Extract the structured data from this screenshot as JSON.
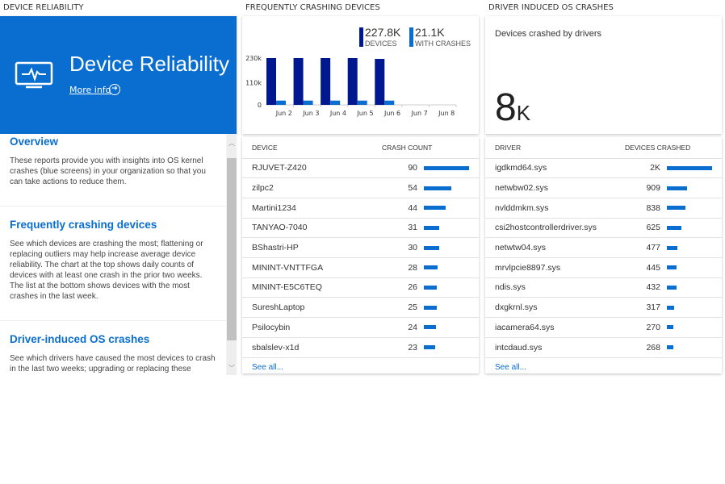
{
  "sections": {
    "left": "DEVICE RELIABILITY",
    "middle": "FREQUENTLY CRASHING DEVICES",
    "right": "DRIVER INDUCED OS CRASHES"
  },
  "hero": {
    "title": "Device Reliability",
    "more_info": "More info",
    "icon": "monitor-pulse-icon",
    "color": "#0a6ed1"
  },
  "info": [
    {
      "title": "Overview",
      "text": "These reports provide you with insights into OS kernel crashes (blue screens) in your organization so that you can take actions to reduce them."
    },
    {
      "title": "Frequently crashing devices",
      "text": "See which devices are crashing the most; flattening or replacing outliers may help increase average device reliability. The chart at the top shows daily counts of devices with at least one crash in the prior two weeks. The list at the bottom shows devices with the most crashes in the last week."
    },
    {
      "title": "Driver-induced OS crashes",
      "text": "See which drivers have caused the most devices to crash in the last two weeks; upgrading or replacing these drivers"
    }
  ],
  "summary": {
    "devices_value": "227.8K",
    "devices_label": "DEVICES",
    "crashes_value": "21.1K",
    "crashes_label": "WITH CRASHES"
  },
  "chart_data": {
    "type": "bar",
    "categories": [
      "Jun 2",
      "Jun 3",
      "Jun 4",
      "Jun 5",
      "Jun 6",
      "Jun 7",
      "Jun 8"
    ],
    "series": [
      {
        "name": "DEVICES",
        "color": "#00188f",
        "values": [
          230000,
          230000,
          230000,
          230000,
          226000,
          null,
          null
        ]
      },
      {
        "name": "WITH CRASHES",
        "color": "#0a6ed1",
        "values": [
          21000,
          21000,
          21000,
          21000,
          21000,
          null,
          null
        ]
      }
    ],
    "yticks": [
      "0",
      "110k",
      "230k"
    ],
    "ylim": [
      0,
      230000
    ]
  },
  "devices": {
    "col_device": "DEVICE",
    "col_count": "CRASH COUNT",
    "see_all": "See all...",
    "rows": [
      {
        "name": "RJUVET-Z420",
        "value": "90",
        "n": 90
      },
      {
        "name": "zilpc2",
        "value": "54",
        "n": 54
      },
      {
        "name": "Martini1234",
        "value": "44",
        "n": 44
      },
      {
        "name": "TANYAO-7040",
        "value": "31",
        "n": 31
      },
      {
        "name": "BShastri-HP",
        "value": "30",
        "n": 30
      },
      {
        "name": "MININT-VNTTFGA",
        "value": "28",
        "n": 28
      },
      {
        "name": "MININT-E5C6TEQ",
        "value": "26",
        "n": 26
      },
      {
        "name": "SureshLaptop",
        "value": "25",
        "n": 25
      },
      {
        "name": "Psilocybin",
        "value": "24",
        "n": 24
      },
      {
        "name": "sbalslev-x1d",
        "value": "23",
        "n": 23
      }
    ]
  },
  "drivers": {
    "kpi_label": "Devices crashed by drivers",
    "kpi_value": "8",
    "kpi_unit": "K",
    "col_driver": "DRIVER",
    "col_count": "DEVICES CRASHED",
    "see_all": "See all...",
    "rows": [
      {
        "name": "igdkmd64.sys",
        "value": "2K",
        "n": 2000
      },
      {
        "name": "netwbw02.sys",
        "value": "909",
        "n": 909
      },
      {
        "name": "nvlddmkm.sys",
        "value": "838",
        "n": 838
      },
      {
        "name": "csi2hostcontrollerdriver.sys",
        "value": "625",
        "n": 625
      },
      {
        "name": "netwtw04.sys",
        "value": "477",
        "n": 477
      },
      {
        "name": "mrvlpcie8897.sys",
        "value": "445",
        "n": 445
      },
      {
        "name": "ndis.sys",
        "value": "432",
        "n": 432
      },
      {
        "name": "dxgkrnl.sys",
        "value": "317",
        "n": 317
      },
      {
        "name": "iacamera64.sys",
        "value": "270",
        "n": 270
      },
      {
        "name": "intcdaud.sys",
        "value": "268",
        "n": 268
      }
    ]
  }
}
